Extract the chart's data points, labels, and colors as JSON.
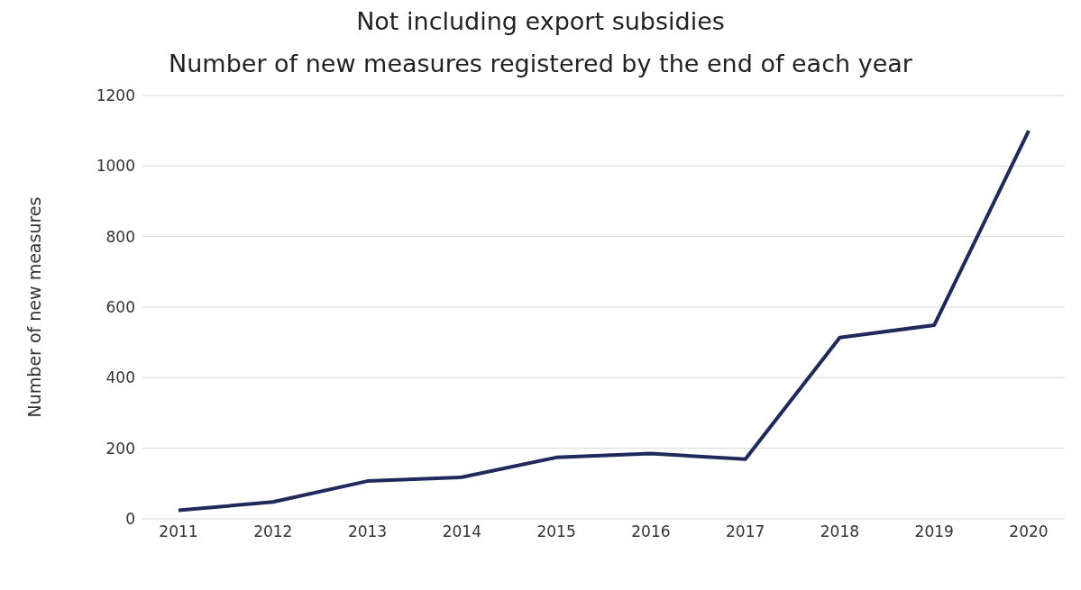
{
  "chart_data": {
    "type": "line",
    "title": "Not including export subsidies",
    "subtitle": "Number of new measures registered by the end of each year",
    "ylabel": "Number of new measures",
    "categories": [
      "2011",
      "2012",
      "2013",
      "2014",
      "2015",
      "2016",
      "2017",
      "2018",
      "2019",
      "2020"
    ],
    "series": [
      {
        "color": "#1f2a5c",
        "values": [
          24,
          48,
          107,
          118,
          174,
          185,
          169,
          514,
          549,
          1100
        ]
      }
    ],
    "ylim": [
      0,
      1200
    ],
    "yticks": [
      0,
      200,
      400,
      600,
      800,
      1000,
      1200
    ],
    "grid": "y"
  }
}
